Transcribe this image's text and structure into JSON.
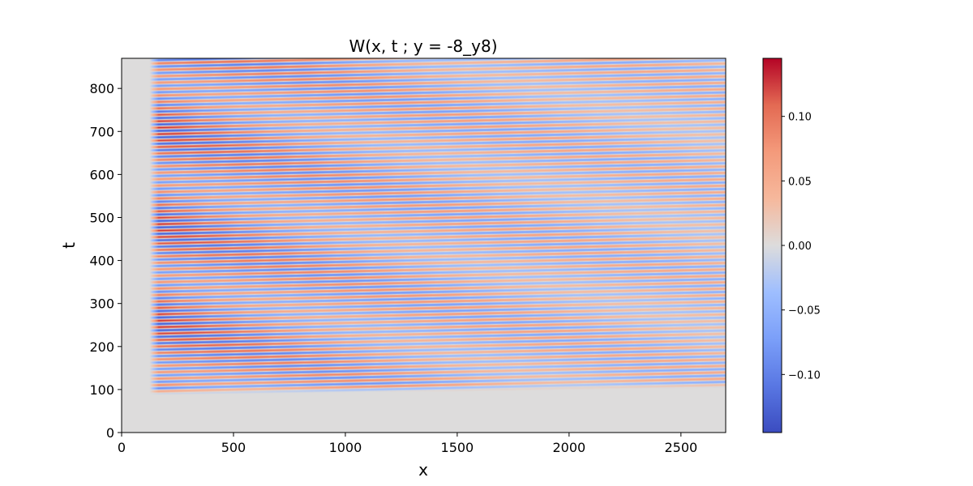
{
  "chart_data": {
    "type": "heatmap",
    "title": "W(x, t ; y = -8_y8)",
    "xlabel": "x",
    "ylabel": "t",
    "xlim": [
      0,
      2700
    ],
    "ylim": [
      0,
      870
    ],
    "xticks": [
      0,
      500,
      1000,
      1500,
      2000,
      2500
    ],
    "yticks": [
      0,
      100,
      200,
      300,
      400,
      500,
      600,
      700,
      800
    ],
    "colormap": "coolwarm",
    "colorbar": {
      "vmin": -0.145,
      "vmax": 0.145,
      "ticks": [
        -0.1,
        -0.05,
        0.0,
        0.05,
        0.1
      ],
      "tick_labels": [
        "−0.10",
        "−0.05",
        "0.00",
        "0.05",
        "0.10"
      ]
    },
    "field": {
      "description_of_pattern": "oscillating diagonal wave bands",
      "x_start": 125,
      "t_front": 95,
      "background_value": 0.0,
      "amplitude_near_start": 0.14,
      "amplitude_far": 0.05
    }
  }
}
